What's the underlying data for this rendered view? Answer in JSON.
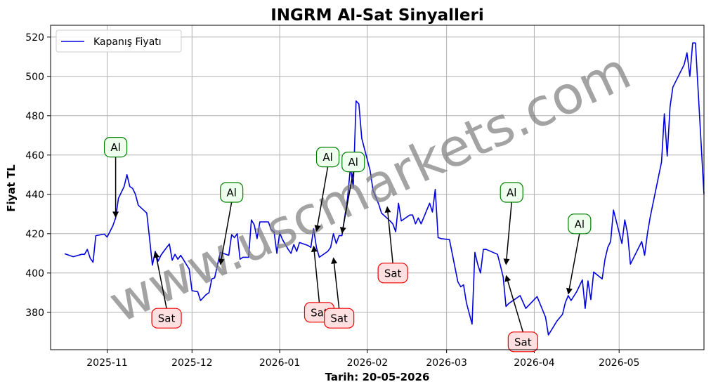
{
  "chart_data": {
    "type": "line",
    "title": "INGRM Al-Sat Sinyalleri",
    "xlabel": "Tarih: 20-05-2026",
    "ylabel": "Fiyat TL",
    "legend": {
      "entries": [
        "Kapanış Fiyatı"
      ],
      "placement": "top-left"
    },
    "watermark": "www.uscmarkets.com",
    "grid": true,
    "xlim": [
      "2025-10-12",
      "2026-05-31"
    ],
    "ylim": [
      361,
      526
    ],
    "x_ticks": [
      "2025-11-01",
      "2025-12-01",
      "2026-01-01",
      "2026-02-01",
      "2026-03-01",
      "2026-04-01",
      "2026-05-01"
    ],
    "x_tick_labels": [
      "2025-11",
      "2025-12",
      "2026-01",
      "2026-02",
      "2026-03",
      "2026-04",
      "2026-05"
    ],
    "y_ticks": [
      380,
      400,
      420,
      440,
      460,
      480,
      500,
      520
    ],
    "line_color": "#0000dd",
    "series": [
      {
        "name": "Kapanış Fiyatı",
        "points": [
          [
            "2025-10-17",
            409.8
          ],
          [
            "2025-10-20",
            408.3
          ],
          [
            "2025-10-23",
            409.5
          ],
          [
            "2025-10-24",
            409.5
          ],
          [
            "2025-10-25",
            412.0
          ],
          [
            "2025-10-26",
            407.5
          ],
          [
            "2025-10-27",
            405.5
          ],
          [
            "2025-10-28",
            419.0
          ],
          [
            "2025-10-31",
            419.8
          ],
          [
            "2025-11-01",
            418.3
          ],
          [
            "2025-11-03",
            424.0
          ],
          [
            "2025-11-04",
            428.0
          ],
          [
            "2025-11-05",
            438.0
          ],
          [
            "2025-11-07",
            444.0
          ],
          [
            "2025-11-08",
            450.0
          ],
          [
            "2025-11-09",
            444.0
          ],
          [
            "2025-11-10",
            443.0
          ],
          [
            "2025-11-11",
            440.0
          ],
          [
            "2025-11-12",
            434.5
          ],
          [
            "2025-11-15",
            430.5
          ],
          [
            "2025-11-16",
            417.5
          ],
          [
            "2025-11-17",
            404.0
          ],
          [
            "2025-11-18",
            411.0
          ],
          [
            "2025-11-19",
            406.0
          ],
          [
            "2025-11-20",
            409.0
          ],
          [
            "2025-11-21",
            411.0
          ],
          [
            "2025-11-23",
            414.8
          ],
          [
            "2025-11-24",
            406.5
          ],
          [
            "2025-11-25",
            409.5
          ],
          [
            "2025-11-26",
            407.0
          ],
          [
            "2025-11-27",
            409.0
          ],
          [
            "2025-11-30",
            402.0
          ],
          [
            "2025-12-01",
            391.0
          ],
          [
            "2025-12-03",
            390.5
          ],
          [
            "2025-12-04",
            386.0
          ],
          [
            "2025-12-06",
            389.0
          ],
          [
            "2025-12-07",
            390.0
          ],
          [
            "2025-12-08",
            397.0
          ],
          [
            "2025-12-09",
            397.5
          ],
          [
            "2025-12-10",
            404.0
          ],
          [
            "2025-12-11",
            410.5
          ],
          [
            "2025-12-14",
            409.0
          ],
          [
            "2025-12-15",
            419.5
          ],
          [
            "2025-12-16",
            418.0
          ],
          [
            "2025-12-17",
            420.0
          ],
          [
            "2025-12-18",
            407.0
          ],
          [
            "2025-12-19",
            408.0
          ],
          [
            "2025-12-21",
            408.0
          ],
          [
            "2025-12-22",
            427.0
          ],
          [
            "2025-12-23",
            424.5
          ],
          [
            "2025-12-24",
            417.5
          ],
          [
            "2025-12-25",
            426.0
          ],
          [
            "2025-12-28",
            426.0
          ],
          [
            "2025-12-29",
            422.0
          ],
          [
            "2025-12-30",
            421.0
          ],
          [
            "2025-12-31",
            410.0
          ],
          [
            "2026-01-01",
            420.5
          ],
          [
            "2026-01-02",
            417.0
          ],
          [
            "2026-01-04",
            412.0
          ],
          [
            "2026-01-05",
            410.0
          ],
          [
            "2026-01-06",
            414.5
          ],
          [
            "2026-01-07",
            411.0
          ],
          [
            "2026-01-08",
            415.5
          ],
          [
            "2026-01-11",
            414.0
          ],
          [
            "2026-01-12",
            413.0
          ],
          [
            "2026-01-13",
            422.5
          ],
          [
            "2026-01-14",
            413.0
          ],
          [
            "2026-01-15",
            408.0
          ],
          [
            "2026-01-18",
            411.0
          ],
          [
            "2026-01-19",
            413.0
          ],
          [
            "2026-01-20",
            420.0
          ],
          [
            "2026-01-21",
            415.0
          ],
          [
            "2026-01-22",
            419.0
          ],
          [
            "2026-01-23",
            419.0
          ],
          [
            "2026-01-25",
            438.0
          ],
          [
            "2026-01-26",
            454.0
          ],
          [
            "2026-01-27",
            443.5
          ],
          [
            "2026-01-28",
            487.5
          ],
          [
            "2026-01-29",
            486.0
          ],
          [
            "2026-01-30",
            468.5
          ],
          [
            "2026-02-02",
            452.0
          ],
          [
            "2026-02-03",
            442.0
          ],
          [
            "2026-02-04",
            438.5
          ],
          [
            "2026-02-05",
            435.0
          ],
          [
            "2026-02-06",
            430.5
          ],
          [
            "2026-02-09",
            426.5
          ],
          [
            "2026-02-10",
            425.0
          ],
          [
            "2026-02-11",
            421.0
          ],
          [
            "2026-02-12",
            435.5
          ],
          [
            "2026-02-13",
            426.5
          ],
          [
            "2026-02-16",
            429.5
          ],
          [
            "2026-02-17",
            429.5
          ],
          [
            "2026-02-18",
            425.0
          ],
          [
            "2026-02-19",
            428.0
          ],
          [
            "2026-02-20",
            425.0
          ],
          [
            "2026-02-23",
            435.5
          ],
          [
            "2026-02-24",
            431.0
          ],
          [
            "2026-02-25",
            442.5
          ],
          [
            "2026-02-26",
            418.0
          ],
          [
            "2026-02-27",
            417.5
          ],
          [
            "2026-03-02",
            417.0
          ],
          [
            "2026-03-05",
            395.5
          ],
          [
            "2026-03-06",
            393.0
          ],
          [
            "2026-03-07",
            394.0
          ],
          [
            "2026-03-08",
            385.0
          ],
          [
            "2026-03-10",
            374.0
          ],
          [
            "2026-03-11",
            410.5
          ],
          [
            "2026-03-12",
            404.5
          ],
          [
            "2026-03-13",
            400.0
          ],
          [
            "2026-03-14",
            412.0
          ],
          [
            "2026-03-15",
            412.0
          ],
          [
            "2026-03-19",
            409.5
          ],
          [
            "2026-03-20",
            404.0
          ],
          [
            "2026-03-21",
            398.0
          ],
          [
            "2026-03-22",
            383.0
          ],
          [
            "2026-03-23",
            384.5
          ],
          [
            "2026-03-27",
            388.5
          ],
          [
            "2026-03-29",
            382.0
          ],
          [
            "2026-04-02",
            388.0
          ],
          [
            "2026-04-04",
            381.0
          ],
          [
            "2026-04-05",
            377.5
          ],
          [
            "2026-04-06",
            368.5
          ],
          [
            "2026-04-09",
            375.5
          ],
          [
            "2026-04-11",
            379.0
          ],
          [
            "2026-04-12",
            385.0
          ],
          [
            "2026-04-13",
            388.5
          ],
          [
            "2026-04-14",
            386.0
          ],
          [
            "2026-04-16",
            390.5
          ],
          [
            "2026-04-18",
            396.5
          ],
          [
            "2026-04-19",
            382.0
          ],
          [
            "2026-04-20",
            396.0
          ],
          [
            "2026-04-21",
            386.5
          ],
          [
            "2026-04-22",
            400.5
          ],
          [
            "2026-04-25",
            397.0
          ],
          [
            "2026-04-26",
            407.0
          ],
          [
            "2026-04-27",
            413.0
          ],
          [
            "2026-04-28",
            416.0
          ],
          [
            "2026-04-29",
            432.0
          ],
          [
            "2026-05-02",
            415.0
          ],
          [
            "2026-05-03",
            427.0
          ],
          [
            "2026-05-04",
            420.0
          ],
          [
            "2026-05-05",
            404.5
          ],
          [
            "2026-05-09",
            416.0
          ],
          [
            "2026-05-10",
            409.0
          ],
          [
            "2026-05-11",
            420.0
          ],
          [
            "2026-05-12",
            428.5
          ],
          [
            "2026-05-16",
            456.5
          ],
          [
            "2026-05-17",
            481.0
          ],
          [
            "2026-05-18",
            459.5
          ],
          [
            "2026-05-19",
            484.5
          ],
          [
            "2026-05-20",
            494.5
          ],
          [
            "2026-05-24",
            506.0
          ],
          [
            "2026-05-25",
            512.0
          ],
          [
            "2026-05-26",
            500.0
          ],
          [
            "2026-05-27",
            517.0
          ],
          [
            "2026-05-28",
            517.0
          ],
          [
            "2026-05-31",
            440.0
          ]
        ]
      }
    ],
    "annotations": [
      {
        "text": "Al",
        "kind": "buy",
        "x": "2025-11-04",
        "y": 428.0,
        "label_x": "2025-11-04",
        "label_y": 464.0
      },
      {
        "text": "Sat",
        "kind": "sell",
        "x": "2025-11-18",
        "y": 411.0,
        "label_x": "2025-11-22",
        "label_y": 377.0
      },
      {
        "text": "Al",
        "kind": "buy",
        "x": "2025-12-11",
        "y": 404.0,
        "label_x": "2025-12-15",
        "label_y": 441.0
      },
      {
        "text": "Sat",
        "kind": "sell",
        "x": "2026-01-13",
        "y": 414.0,
        "label_x": "2026-01-15",
        "label_y": 380.0
      },
      {
        "text": "Al",
        "kind": "buy",
        "x": "2026-01-14",
        "y": 421.0,
        "label_x": "2026-01-18",
        "label_y": 459.0
      },
      {
        "text": "Sat",
        "kind": "sell",
        "x": "2026-01-20",
        "y": 408.0,
        "label_x": "2026-01-22",
        "label_y": 377.0
      },
      {
        "text": "Al",
        "kind": "buy",
        "x": "2026-01-23",
        "y": 420.0,
        "label_x": "2026-01-27",
        "label_y": 456.5
      },
      {
        "text": "Sat",
        "kind": "sell",
        "x": "2026-02-08",
        "y": 434.0,
        "label_x": "2026-02-10",
        "label_y": 400.0
      },
      {
        "text": "Al",
        "kind": "buy",
        "x": "2026-03-22",
        "y": 404.0,
        "label_x": "2026-03-24",
        "label_y": 441.0
      },
      {
        "text": "Sat",
        "kind": "sell",
        "x": "2026-03-22",
        "y": 399.0,
        "label_x": "2026-03-28",
        "label_y": 365.0
      },
      {
        "text": "Al",
        "kind": "buy",
        "x": "2026-04-13",
        "y": 389.0,
        "label_x": "2026-04-17",
        "label_y": 425.0
      }
    ],
    "annotation_colors": {
      "buy": {
        "edge": "#008000",
        "face": "#eeffee"
      },
      "sell": {
        "edge": "#ee0000",
        "face": "#ffe0e0"
      }
    }
  }
}
